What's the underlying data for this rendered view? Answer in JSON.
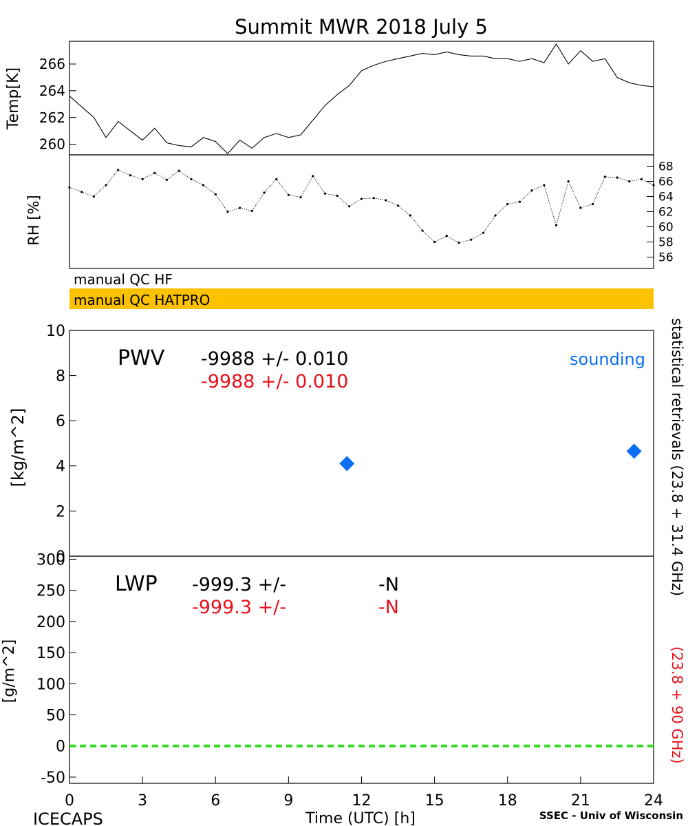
{
  "title": "Summit MWR 2018 July  5",
  "footer": {
    "left": "ICECAPS",
    "center": "Time (UTC) [h]",
    "right": "SSEC - Univ of Wisconsin"
  },
  "colors": {
    "axis": "#000000",
    "sounding": "#0a6ff2",
    "red": "#e8101a",
    "qc_bar": "#fcc200",
    "lwp_zero": "#33dd22"
  },
  "qc_labels": {
    "hf": "manual QC HF",
    "hatpro": "manual QC HATPRO"
  },
  "right_label": {
    "black": "statistical retrievals (23.8 + 31.4 GHz)",
    "red": "(23.8 + 90 GHz)"
  },
  "chart_data": [
    {
      "type": "line",
      "name": "temperature",
      "ylabel": "Temp[K]",
      "xlim": [
        0,
        24
      ],
      "ylim": [
        259.2,
        267.7
      ],
      "yticks": [
        260,
        262,
        264,
        266
      ],
      "ytick_labels": [
        "260",
        "262",
        "264",
        "266"
      ],
      "x": [
        0.0,
        0.5,
        1.0,
        1.5,
        2.0,
        2.5,
        3.0,
        3.5,
        4.0,
        4.5,
        5.0,
        5.5,
        6.0,
        6.5,
        7.0,
        7.5,
        8.0,
        8.5,
        9.0,
        9.5,
        10.0,
        10.5,
        11.0,
        11.5,
        12.0,
        12.5,
        13.0,
        13.5,
        14.0,
        14.5,
        15.0,
        15.5,
        16.0,
        16.5,
        17.0,
        17.5,
        18.0,
        18.5,
        19.0,
        19.5,
        20.0,
        20.5,
        21.0,
        21.5,
        22.0,
        22.5,
        23.0,
        23.5,
        24.0
      ],
      "y": [
        263.6,
        262.8,
        262.0,
        260.5,
        261.7,
        261.0,
        260.3,
        261.2,
        260.1,
        259.9,
        259.8,
        260.5,
        260.2,
        259.3,
        260.3,
        259.7,
        260.5,
        260.8,
        260.5,
        260.7,
        261.8,
        262.9,
        263.7,
        264.4,
        265.5,
        265.9,
        266.2,
        266.4,
        266.6,
        266.8,
        266.7,
        266.9,
        266.7,
        266.6,
        266.6,
        266.4,
        266.4,
        266.2,
        266.4,
        266.1,
        267.5,
        266.0,
        267.0,
        266.2,
        266.4,
        265.0,
        264.6,
        264.4,
        264.3
      ]
    },
    {
      "type": "scatter",
      "name": "relative humidity",
      "ylabel": "RH [%]",
      "xlim": [
        0,
        24
      ],
      "ylim": [
        54.5,
        69.5
      ],
      "yticks": [
        56,
        58,
        60,
        62,
        64,
        66,
        68
      ],
      "ytick_labels": [
        "56",
        "58",
        "60",
        "62",
        "64",
        "66",
        "68"
      ],
      "x": [
        0.0,
        0.5,
        1.0,
        1.5,
        2.0,
        2.5,
        3.0,
        3.5,
        4.0,
        4.5,
        5.0,
        5.5,
        6.0,
        6.5,
        7.0,
        7.5,
        8.0,
        8.5,
        9.0,
        9.5,
        10.0,
        10.5,
        11.0,
        11.5,
        12.0,
        12.5,
        13.0,
        13.5,
        14.0,
        14.5,
        15.0,
        15.5,
        16.0,
        16.5,
        17.0,
        17.5,
        18.0,
        18.5,
        19.0,
        19.5,
        20.0,
        20.5,
        21.0,
        21.5,
        22.0,
        22.5,
        23.0,
        23.5,
        24.0
      ],
      "y": [
        65.2,
        64.6,
        64.0,
        65.5,
        67.5,
        66.8,
        66.3,
        67.1,
        66.2,
        67.4,
        66.3,
        65.5,
        64.3,
        62.0,
        62.5,
        62.1,
        64.5,
        66.3,
        64.2,
        63.9,
        66.7,
        64.4,
        64.1,
        62.7,
        63.7,
        63.8,
        63.5,
        62.8,
        61.5,
        59.5,
        58.0,
        58.8,
        57.9,
        58.3,
        59.2,
        61.5,
        63.0,
        63.3,
        64.8,
        65.5,
        60.2,
        66.0,
        62.5,
        63.0,
        66.6,
        66.5,
        66.0,
        66.3,
        65.5
      ]
    },
    {
      "type": "scatter",
      "name": "pwv",
      "ylabel": "[kg/m^2]",
      "xlim": [
        0,
        24
      ],
      "ylim": [
        0,
        10
      ],
      "yticks": [
        0,
        2,
        4,
        6,
        8,
        10
      ],
      "ytick_labels": [
        "0",
        "2",
        "4",
        "6",
        "8",
        "10"
      ],
      "panel_label": "PWV",
      "stats": [
        "-9988 +/- 0.010",
        "-9988 +/- 0.010"
      ],
      "legend": "sounding",
      "sounding": {
        "x": [
          11.4,
          23.2
        ],
        "y": [
          4.1,
          4.65
        ]
      }
    },
    {
      "type": "line",
      "name": "lwp",
      "ylabel": "[g/m^2]",
      "xlabel": "Time (UTC) [h]",
      "xlim": [
        0,
        24
      ],
      "ylim": [
        -60,
        305
      ],
      "yticks": [
        -50,
        0,
        50,
        100,
        150,
        200,
        250,
        300
      ],
      "ytick_labels": [
        "-50",
        "0",
        "50",
        "100",
        "150",
        "200",
        "250",
        "300"
      ],
      "xticks": [
        0,
        3,
        6,
        9,
        12,
        15,
        18,
        21,
        24
      ],
      "xtick_labels": [
        "0",
        "3",
        "6",
        "9",
        "12",
        "15",
        "18",
        "21",
        "24"
      ],
      "panel_label": "LWP",
      "stats_value": [
        "-999.3 +/-",
        "-999.3 +/-"
      ],
      "stats_unc": [
        "-N",
        "-N"
      ],
      "zero_line": 0
    }
  ]
}
